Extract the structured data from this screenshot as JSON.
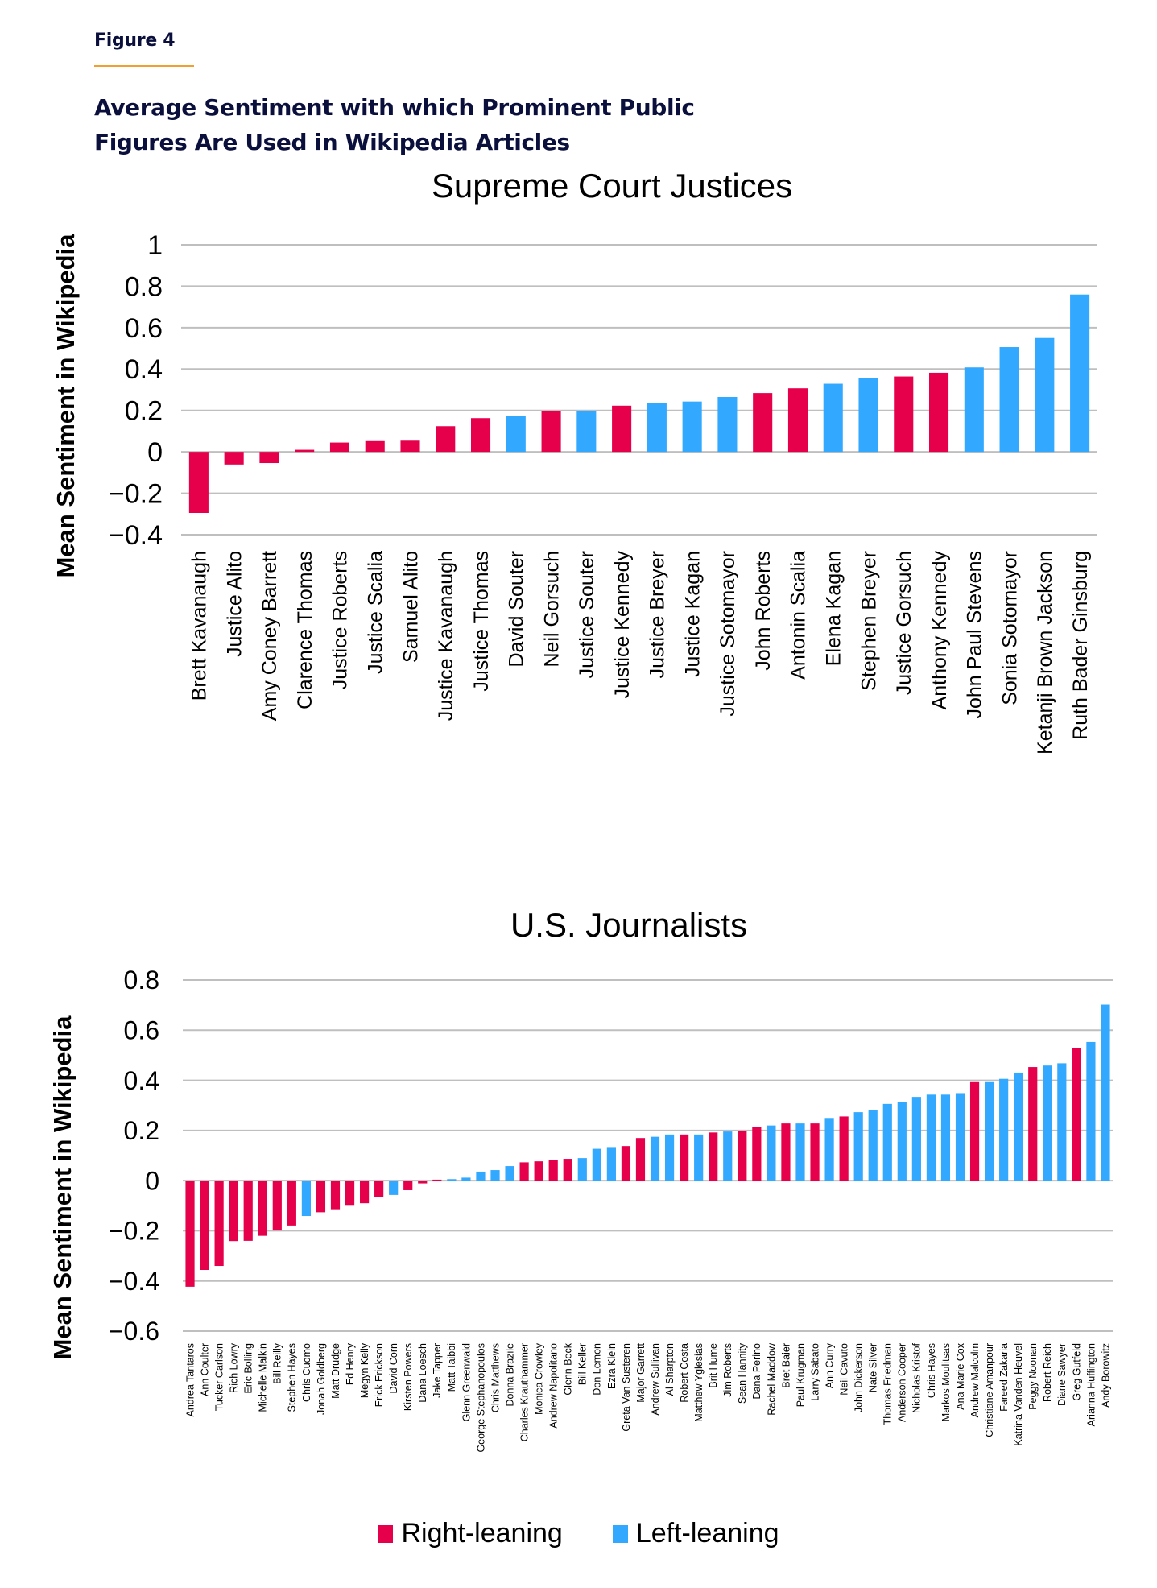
{
  "header": {
    "figure_label": "Figure 4",
    "title_line1": "Average Sentiment with which Prominent Public",
    "title_line2": "Figures Are Used in Wikipedia Articles"
  },
  "colors": {
    "right_leaning": "#E6004C",
    "left_leaning": "#33A8FF",
    "title_navy": "#0A0F3C",
    "accent_rule": "#F0A030",
    "gridline": "#BFBFBF"
  },
  "legend": {
    "items": [
      {
        "label": "Right-leaning",
        "key": "right"
      },
      {
        "label": "Left-leaning",
        "key": "left"
      }
    ],
    "placement": "bottom-center"
  },
  "chart_data": [
    {
      "type": "bar",
      "title": "Supreme Court Justices",
      "xlabel": "",
      "ylabel": "Mean Sentiment in Wikipedia",
      "ylim": [
        -0.4,
        1.0
      ],
      "yticks": [
        1,
        0.8,
        0.6,
        0.4,
        0.2,
        0,
        -0.2,
        -0.4
      ],
      "ytick_labels": [
        "1",
        "0.8",
        "0.6",
        "0.4",
        "0.2",
        "0",
        "−0.2",
        "−0.4"
      ],
      "grid": true,
      "categories": [
        "Brett Kavanaugh",
        "Justice Alito",
        "Amy Coney Barrett",
        "Clarence Thomas",
        "Justice Roberts",
        "Justice Scalia",
        "Samuel Alito",
        "Justice Kavanaugh",
        "Justice Thomas",
        "David Souter",
        "Neil Gorsuch",
        "Justice Souter",
        "Justice Kennedy",
        "Justice Breyer",
        "Justice Kagan",
        "Justice Sotomayor",
        "John Roberts",
        "Antonin Scalia",
        "Elena Kagan",
        "Stephen Breyer",
        "Justice Gorsuch",
        "Anthony Kennedy",
        "John Paul Stevens",
        "Sonia Sotomayor",
        "Ketanji Brown Jackson",
        "Ruth Bader Ginsburg"
      ],
      "values": [
        -0.295,
        -0.061,
        -0.054,
        0.01,
        0.045,
        0.052,
        0.054,
        0.124,
        0.163,
        0.173,
        0.196,
        0.199,
        0.223,
        0.235,
        0.243,
        0.265,
        0.284,
        0.307,
        0.329,
        0.355,
        0.364,
        0.382,
        0.408,
        0.506,
        0.55,
        0.76
      ],
      "leaning": [
        "right",
        "right",
        "right",
        "right",
        "right",
        "right",
        "right",
        "right",
        "right",
        "left",
        "right",
        "left",
        "right",
        "left",
        "left",
        "left",
        "right",
        "right",
        "left",
        "left",
        "right",
        "right",
        "left",
        "left",
        "left",
        "left"
      ]
    },
    {
      "type": "bar",
      "title": "U.S. Journalists",
      "xlabel": "",
      "ylabel": "Mean Sentiment in Wikipedia",
      "ylim": [
        -0.6,
        0.8
      ],
      "yticks": [
        0.8,
        0.6,
        0.4,
        0.2,
        0,
        -0.2,
        -0.4,
        -0.6
      ],
      "ytick_labels": [
        "0.8",
        "0.6",
        "0.4",
        "0.2",
        "0",
        "−0.2",
        "−0.4",
        "−0.6"
      ],
      "grid": true,
      "categories": [
        "Andrea Tantaros",
        "Ann Coulter",
        "Tucker Carlson",
        "Rich Lowry",
        "Eric Bolling",
        "Michelle Malkin",
        "Bill Reilly",
        "Stephen Hayes",
        "Chris Cuomo",
        "Jonah Goldberg",
        "Matt Drudge",
        "Ed Henry",
        "Megyn Kelly",
        "Erick Erickson",
        "David Corn",
        "Kirsten Powers",
        "Dana Loesch",
        "Jake Tapper",
        "Matt Taibbi",
        "Glenn Greenwald",
        "George Stephanopoulos",
        "Chris Matthews",
        "Donna Brazile",
        "Charles Krauthammer",
        "Monica Crowley",
        "Andrew Napolitano",
        "Glenn Beck",
        "Bill Keller",
        "Don Lemon",
        "Ezra Klein",
        "Greta Van Susteren",
        "Major Garrett",
        "Andrew Sullivan",
        "Al Sharpton",
        "Robert Costa",
        "Matthew Yglesias",
        "Brit Hume",
        "Jim Roberts",
        "Sean Hannity",
        "Dana Perino",
        "Rachel Maddow",
        "Bret Baier",
        "Paul Krugman",
        "Larry Sabato",
        "Ann Curry",
        "Neil Cavuto",
        "John Dickerson",
        "Nate Silver",
        "Thomas Friedman",
        "Anderson Cooper",
        "Nicholas Kristof",
        "Chris Hayes",
        "Markos Moulitsas",
        "Ana Marie Cox",
        "Andrew Malcolm",
        "Christiane Amanpour",
        "Fareed Zakaria",
        "Katrina Vanden Heuvel",
        "Peggy Noonan",
        "Robert Reich",
        "Diane Sawyer",
        "Greg Gutfeld",
        "Arianna Huffington",
        "Andy Borowitz"
      ],
      "values": [
        -0.423,
        -0.356,
        -0.34,
        -0.241,
        -0.24,
        -0.22,
        -0.199,
        -0.179,
        -0.141,
        -0.126,
        -0.114,
        -0.1,
        -0.09,
        -0.066,
        -0.057,
        -0.038,
        -0.011,
        0.004,
        0.006,
        0.012,
        0.036,
        0.042,
        0.058,
        0.073,
        0.077,
        0.082,
        0.087,
        0.09,
        0.127,
        0.134,
        0.138,
        0.17,
        0.175,
        0.184,
        0.184,
        0.184,
        0.192,
        0.196,
        0.199,
        0.213,
        0.22,
        0.228,
        0.228,
        0.228,
        0.25,
        0.256,
        0.273,
        0.28,
        0.306,
        0.313,
        0.334,
        0.343,
        0.343,
        0.349,
        0.393,
        0.393,
        0.406,
        0.431,
        0.453,
        0.459,
        0.468,
        0.53,
        0.553,
        0.702
      ],
      "leaning": [
        "right",
        "right",
        "right",
        "right",
        "right",
        "right",
        "right",
        "right",
        "left",
        "right",
        "right",
        "right",
        "right",
        "right",
        "left",
        "right",
        "right",
        "right",
        "left",
        "left",
        "left",
        "left",
        "left",
        "right",
        "right",
        "right",
        "right",
        "left",
        "left",
        "left",
        "right",
        "right",
        "left",
        "left",
        "right",
        "left",
        "right",
        "left",
        "right",
        "right",
        "left",
        "right",
        "left",
        "right",
        "left",
        "right",
        "left",
        "left",
        "left",
        "left",
        "left",
        "left",
        "left",
        "left",
        "right",
        "left",
        "left",
        "left",
        "right",
        "left",
        "left",
        "right",
        "left",
        "left"
      ]
    }
  ]
}
